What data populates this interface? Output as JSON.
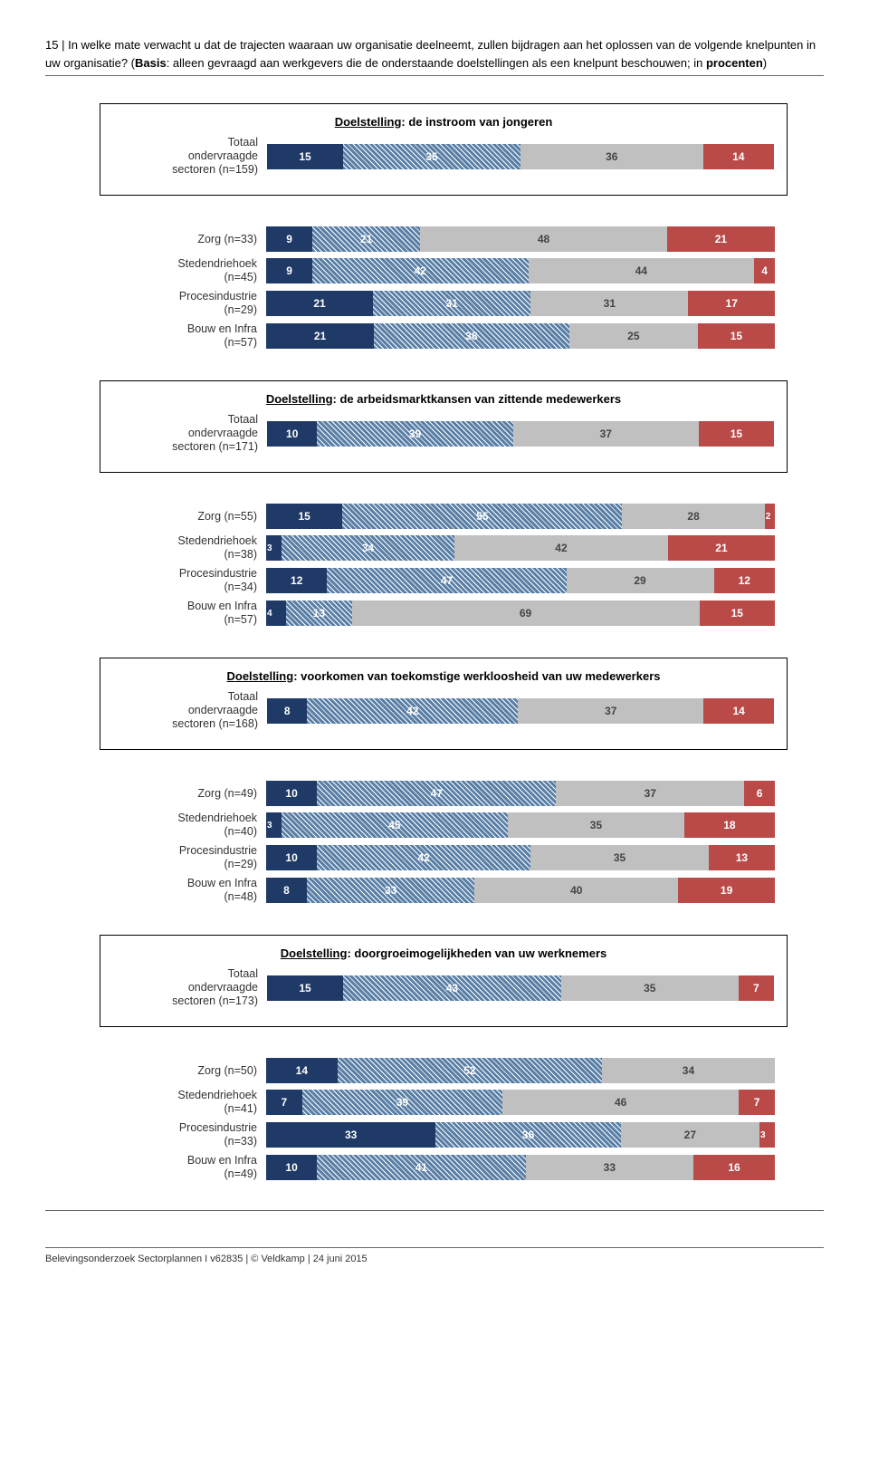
{
  "question": {
    "number": "15 |",
    "text_line1": "In welke mate verwacht u dat de trajecten waaraan uw organisatie deelneemt, zullen bijdragen aan het oplossen van de volgende knelpunten in uw organisatie? (",
    "basis_label": "Basis",
    "text_line2": ": alleen gevraagd aan werkgevers die de onderstaande doelstellingen als een knelpunt beschouwen; in ",
    "procenten_label": "procenten",
    "text_line3": ")"
  },
  "colors": {
    "c1": "#1f3a66",
    "c2": "#5a7fa6",
    "c3": "#c0c0c0",
    "c4": "#b94a48",
    "pattern_overlay": true
  },
  "charts": [
    {
      "boxed": true,
      "title_underline": "Doelstelling",
      "title_rest": ": de instroom van jongeren",
      "rows": [
        {
          "label_lines": [
            "Totaal",
            "ondervraagde",
            "sectoren (n=159)"
          ],
          "segs": [
            15,
            35,
            36,
            14
          ]
        }
      ]
    },
    {
      "boxed": false,
      "rows": [
        {
          "label_lines": [
            "Zorg (n=33)"
          ],
          "segs": [
            9,
            21,
            48,
            21
          ]
        },
        {
          "label_lines": [
            "Stedendriehoek",
            "(n=45)"
          ],
          "segs": [
            9,
            42,
            44,
            4
          ]
        },
        {
          "label_lines": [
            "Procesindustrie",
            "(n=29)"
          ],
          "segs": [
            21,
            31,
            31,
            17
          ]
        },
        {
          "label_lines": [
            "Bouw en Infra",
            "(n=57)"
          ],
          "segs": [
            21,
            38,
            25,
            15
          ]
        }
      ]
    },
    {
      "boxed": true,
      "title_underline": "Doelstelling",
      "title_rest": ": de arbeidsmarktkansen van zittende medewerkers",
      "rows": [
        {
          "label_lines": [
            "Totaal",
            "ondervraagde",
            "sectoren (n=171)"
          ],
          "segs": [
            10,
            39,
            37,
            15
          ]
        }
      ]
    },
    {
      "boxed": false,
      "rows": [
        {
          "label_lines": [
            "Zorg (n=55)"
          ],
          "segs": [
            15,
            55,
            28,
            2
          ]
        },
        {
          "label_lines": [
            "Stedendriehoek",
            "(n=38)"
          ],
          "segs": [
            3,
            34,
            42,
            21
          ]
        },
        {
          "label_lines": [
            "Procesindustrie",
            "(n=34)"
          ],
          "segs": [
            12,
            47,
            29,
            12
          ]
        },
        {
          "label_lines": [
            "Bouw en Infra",
            "(n=57)"
          ],
          "segs": [
            4,
            13,
            69,
            15
          ]
        }
      ]
    },
    {
      "boxed": true,
      "title_underline": "Doelstelling",
      "title_rest": ": voorkomen van toekomstige werkloosheid van uw medewerkers",
      "rows": [
        {
          "label_lines": [
            "Totaal",
            "ondervraagde",
            "sectoren (n=168)"
          ],
          "segs": [
            8,
            42,
            37,
            14
          ]
        }
      ]
    },
    {
      "boxed": false,
      "rows": [
        {
          "label_lines": [
            "Zorg (n=49)"
          ],
          "segs": [
            10,
            47,
            37,
            6
          ]
        },
        {
          "label_lines": [
            "Stedendriehoek",
            "(n=40)"
          ],
          "segs": [
            3,
            45,
            35,
            18
          ]
        },
        {
          "label_lines": [
            "Procesindustrie",
            "(n=29)"
          ],
          "segs": [
            10,
            42,
            35,
            13
          ]
        },
        {
          "label_lines": [
            "Bouw en Infra",
            "(n=48)"
          ],
          "segs": [
            8,
            33,
            40,
            19
          ]
        }
      ]
    },
    {
      "boxed": true,
      "title_underline": "Doelstelling",
      "title_rest": ": doorgroeimogelijkheden van uw werknemers",
      "rows": [
        {
          "label_lines": [
            "Totaal",
            "ondervraagde",
            "sectoren (n=173)"
          ],
          "segs": [
            15,
            43,
            35,
            7
          ]
        }
      ]
    },
    {
      "boxed": false,
      "rows": [
        {
          "label_lines": [
            "Zorg (n=50)"
          ],
          "segs": [
            14,
            52,
            34,
            0
          ]
        },
        {
          "label_lines": [
            "Stedendriehoek",
            "(n=41)"
          ],
          "segs": [
            7,
            39,
            46,
            7
          ]
        },
        {
          "label_lines": [
            "Procesindustrie",
            "(n=33)"
          ],
          "segs": [
            33,
            36,
            27,
            3
          ]
        },
        {
          "label_lines": [
            "Bouw en Infra",
            "(n=49)"
          ],
          "segs": [
            10,
            41,
            33,
            16
          ]
        }
      ]
    }
  ],
  "footer": "Belevingsonderzoek Sectorplannen I v62835 | © Veldkamp | 24 juni 2015"
}
